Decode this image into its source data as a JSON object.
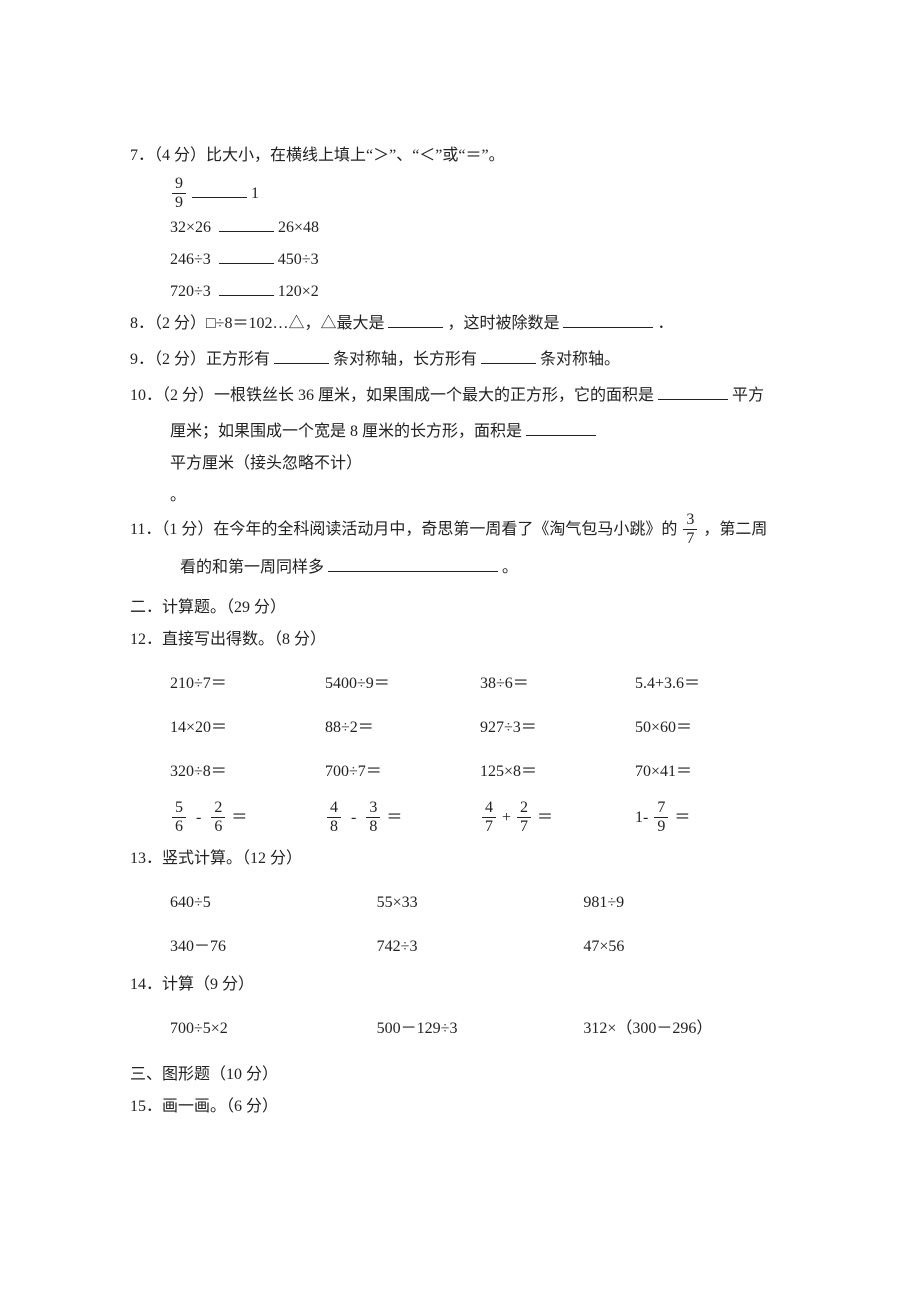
{
  "q7": {
    "prompt": "7．（4 分）比大小，在横线上填上“＞”、“＜”或“＝”。",
    "items": {
      "r0_right": "1",
      "r1_left": "32×26",
      "r1_right": "26×48",
      "r2_left": "246÷3",
      "r2_right": "450÷3",
      "r3_left": "720÷3",
      "r3_right": "120×2"
    },
    "frac": {
      "num": "9",
      "den": "9"
    }
  },
  "q8": {
    "prompt_a": "8．（2 分）□÷8＝102…△，△最大是",
    "prompt_b": "，这时被除数是",
    "tail": "．"
  },
  "q9": {
    "a": "9．（2 分）正方形有 ",
    "b": "条对称轴，长方形有 ",
    "c": "条对称轴。"
  },
  "q10": {
    "line1_a": "10．（2 分）一根铁丝长 36 厘米，如果围成一个最大的正方形，它的面积是",
    "line1_b": "平方",
    "line2_a": "厘米；如果围成一个宽是 8 厘米的长方形，面积是 ",
    "line2_b": "平方厘米（接头忽略不计）",
    "line3": "。"
  },
  "q11": {
    "line1_a": "11．（1 分）在今年的全科阅读活动月中，奇思第一周看了《淘气包马小跳》的",
    "line1_b": "，第二周",
    "line2_a": "看的和第一周同样多",
    "line2_b": "。",
    "frac": {
      "num": "3",
      "den": "7"
    }
  },
  "sec2": "二．计算题。（29 分）",
  "q12": {
    "prompt": "12．直接写出得数。（8 分）",
    "f1": {
      "num": "5",
      "den": "6"
    },
    "f2": {
      "num": "2",
      "den": "6"
    },
    "f3": {
      "num": "4",
      "den": "8"
    },
    "f4": {
      "num": "3",
      "den": "8"
    },
    "f5": {
      "num": "4",
      "den": "7"
    },
    "f6": {
      "num": "2",
      "den": "7"
    },
    "f7": {
      "num": "7",
      "den": "9"
    },
    "rows": [
      [
        "210÷7＝",
        "5400÷9＝",
        "38÷6＝",
        "5.4+3.6＝"
      ],
      [
        "14×20＝",
        "88÷2＝",
        "927÷3＝",
        "50×60＝"
      ],
      [
        "320÷8＝",
        "700÷7＝",
        "125×8＝",
        "70×41＝"
      ]
    ]
  },
  "q13": {
    "prompt": "13．竖式计算。（12 分）",
    "rows": [
      [
        "640÷5",
        "55×33",
        "981÷9"
      ],
      [
        "340－76",
        "742÷3",
        "47×56"
      ]
    ]
  },
  "q14": {
    "prompt": "14．计算（9 分）",
    "rows": [
      [
        "700÷5×2",
        "500－129÷3",
        "312×（300－296）"
      ]
    ]
  },
  "sec3": "三、图形题（10 分）",
  "q15": "15．画一画。（6 分）"
}
